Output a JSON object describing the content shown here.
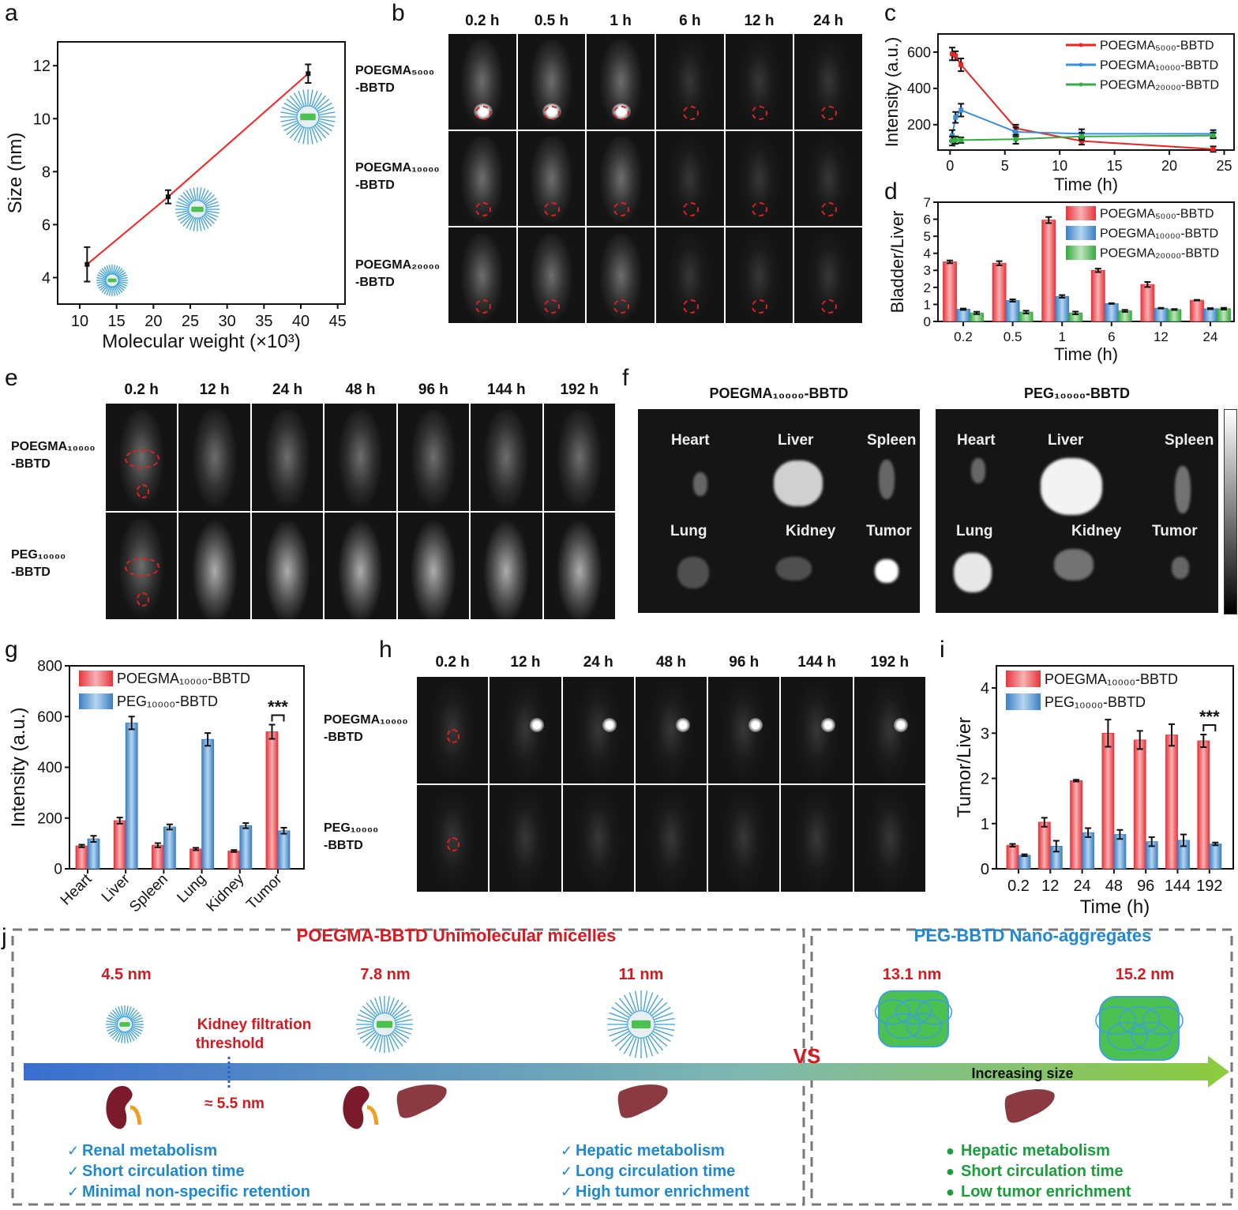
{
  "panel_labels": {
    "a": "a",
    "b": "b",
    "c": "c",
    "d": "d",
    "e": "e",
    "f": "f",
    "g": "g",
    "h": "h",
    "i": "i",
    "j": "j"
  },
  "chart_data": [
    {
      "panel": "a",
      "type": "line",
      "title": "",
      "xlabel": "Molecular weight (×10³)",
      "ylabel": "Size (nm)",
      "xlim": [
        7,
        46
      ],
      "ylim": [
        3,
        12.9
      ],
      "xticks": [
        10,
        15,
        20,
        25,
        30,
        35,
        40,
        45
      ],
      "yticks": [
        4,
        6,
        8,
        10,
        12
      ],
      "grid": false,
      "series": [
        {
          "x": [
            11,
            22,
            41
          ],
          "y": [
            4.5,
            7.05,
            11.7
          ],
          "err": [
            0.65,
            0.25,
            0.35
          ],
          "color": "#ff2020"
        }
      ]
    },
    {
      "panel": "c",
      "type": "line",
      "title": "",
      "xlabel": "Time (h)",
      "ylabel": "Intensity (a.u.)",
      "xlim": [
        -1.1,
        25.9
      ],
      "ylim": [
        60,
        700
      ],
      "xticks": [
        0,
        5,
        10,
        15,
        20,
        25
      ],
      "yticks": [
        200,
        400,
        600
      ],
      "grid": false,
      "legend": "top-right",
      "series": [
        {
          "name": "POEGMA₅₀₀₀-BBTD",
          "x": [
            0.2,
            0.5,
            1,
            6,
            12,
            24
          ],
          "y": [
            590,
            580,
            530,
            180,
            110,
            65
          ],
          "err": [
            35,
            25,
            35,
            20,
            20,
            15
          ],
          "color": "#ee2222"
        },
        {
          "name": "POEGMA₁₀₀₀₀-BBTD",
          "x": [
            0.2,
            0.5,
            1,
            6,
            12,
            24
          ],
          "y": [
            140,
            240,
            280,
            160,
            150,
            150
          ],
          "err": [
            30,
            30,
            35,
            25,
            25,
            20
          ],
          "color": "#3a8fd8"
        },
        {
          "name": "POEGMA₂₀₀₀₀-BBTD",
          "x": [
            0.2,
            0.5,
            1,
            6,
            12,
            24
          ],
          "y": [
            110,
            115,
            115,
            120,
            135,
            140
          ],
          "err": [
            25,
            20,
            15,
            25,
            20,
            15
          ],
          "color": "#33b040"
        }
      ]
    },
    {
      "panel": "d",
      "type": "bar",
      "title": "",
      "xlabel": "Time (h)",
      "ylabel": "Bladder/Liver",
      "categories": [
        "0.2",
        "0.5",
        "1",
        "6",
        "12",
        "24"
      ],
      "ylim": [
        0,
        7
      ],
      "yticks": [
        0,
        1,
        2,
        3,
        4,
        5,
        6,
        7
      ],
      "legend": "top-right",
      "series": [
        {
          "name": "POEGMA₅₀₀₀-BBTD",
          "values": [
            3.5,
            3.42,
            5.95,
            3.0,
            2.17,
            1.25
          ],
          "errors": [
            0.08,
            0.12,
            0.18,
            0.1,
            0.15,
            0.02
          ],
          "color": "red"
        },
        {
          "name": "POEGMA₁₀₀₀₀-BBTD",
          "values": [
            0.72,
            1.23,
            1.47,
            1.05,
            0.78,
            0.75
          ],
          "errors": [
            0.04,
            0.07,
            0.08,
            0.02,
            0.02,
            0.03
          ],
          "color": "blue"
        },
        {
          "name": "POEGMA₂₀₀₀₀-BBTD",
          "values": [
            0.5,
            0.55,
            0.5,
            0.62,
            0.7,
            0.75
          ],
          "errors": [
            0.07,
            0.08,
            0.08,
            0.06,
            0.03,
            0.05
          ],
          "color": "green"
        }
      ]
    },
    {
      "panel": "g",
      "type": "bar",
      "title": "",
      "xlabel": "",
      "ylabel": "Intensity (a.u.)",
      "categories": [
        "Heart",
        "Liver",
        "Spleen",
        "Lung",
        "Kidney",
        "Tumor"
      ],
      "ylim": [
        0,
        800
      ],
      "yticks": [
        0,
        200,
        400,
        600,
        800
      ],
      "legend": "top-left",
      "annotation": {
        "text": "***",
        "category": "Tumor"
      },
      "series": [
        {
          "name": "POEGMA₁₀₀₀₀-BBTD",
          "values": [
            90,
            190,
            93,
            78,
            70,
            540
          ],
          "errors": [
            5,
            12,
            8,
            5,
            4,
            28
          ],
          "color": "red"
        },
        {
          "name": "PEG₁₀₀₀₀-BBTD",
          "values": [
            118,
            575,
            165,
            510,
            170,
            150
          ],
          "errors": [
            12,
            25,
            10,
            25,
            10,
            12
          ],
          "color": "blue"
        }
      ]
    },
    {
      "panel": "i",
      "type": "bar",
      "title": "",
      "xlabel": "Time (h)",
      "ylabel": "Tumor/Liver",
      "categories": [
        "0.2",
        "12",
        "24",
        "48",
        "96",
        "144",
        "192"
      ],
      "ylim": [
        0,
        4.49
      ],
      "yticks": [
        0,
        1,
        2,
        3,
        4
      ],
      "legend": "top-left",
      "annotation": {
        "text": "***",
        "category": "192"
      },
      "series": [
        {
          "name": "POEGMA₁₀₀₀₀-BBTD",
          "values": [
            0.52,
            1.03,
            1.95,
            3.0,
            2.85,
            2.96,
            2.83
          ],
          "errors": [
            0.03,
            0.1,
            0.02,
            0.3,
            0.2,
            0.24,
            0.14
          ],
          "color": "red"
        },
        {
          "name": "PEG₁₀₀₀₀-BBTD",
          "values": [
            0.3,
            0.5,
            0.8,
            0.76,
            0.6,
            0.63,
            0.55
          ],
          "errors": [
            0.02,
            0.12,
            0.1,
            0.1,
            0.1,
            0.13,
            0.03
          ],
          "color": "blue"
        }
      ]
    }
  ],
  "panel_b": {
    "columns": [
      "0.2 h",
      "0.5 h",
      "1 h",
      "6 h",
      "12 h",
      "24 h"
    ],
    "rows": [
      {
        "line1": "POEGMA₅₀₀₀",
        "line2": "-BBTD"
      },
      {
        "line1": "POEGMA₁₀₀₀₀",
        "line2": "-BBTD"
      },
      {
        "line1": "POEGMA₂₀₀₀₀",
        "line2": "-BBTD"
      }
    ]
  },
  "panel_e": {
    "columns": [
      "0.2 h",
      "12 h",
      "24 h",
      "48 h",
      "96 h",
      "144 h",
      "192 h"
    ],
    "rows": [
      {
        "line1": "POEGMA₁₀₀₀₀",
        "line2": "-BBTD"
      },
      {
        "line1": "PEG₁₀₀₀₀",
        "line2": "-BBTD"
      }
    ]
  },
  "panel_f": {
    "groups": [
      {
        "title": "POEGMA₁₀₀₀₀-BBTD",
        "organs": [
          "Heart",
          "Liver",
          "Spleen",
          "Lung",
          "Kidney",
          "Tumor"
        ]
      },
      {
        "title": "PEG₁₀₀₀₀-BBTD",
        "organs": [
          "Heart",
          "Liver",
          "Spleen",
          "Lung",
          "Kidney",
          "Tumor"
        ]
      }
    ]
  },
  "panel_h": {
    "columns": [
      "0.2 h",
      "12 h",
      "24 h",
      "48 h",
      "96 h",
      "144 h",
      "192 h"
    ],
    "rows": [
      {
        "line1": "POEGMA₁₀₀₀₀",
        "line2": "-BBTD"
      },
      {
        "line1": "PEG₁₀₀₀₀",
        "line2": "-BBTD"
      }
    ]
  },
  "panel_j": {
    "left_title": "POEGMA-BBTD Unimolecular micelles",
    "right_title": "PEG-BBTD Nano-aggregates",
    "sizes": [
      "4.5 nm",
      "7.8 nm",
      "11 nm",
      "13.1 nm",
      "15.2 nm"
    ],
    "threshold_line1": "Kidney filtration",
    "threshold_line2": "threshold",
    "threshold_value": "≈ 5.5 nm",
    "vs": "VS",
    "arrow_label": "Increasing size",
    "list_left": [
      "Renal metabolism",
      "Short circulation time",
      "Minimal non-specific retention"
    ],
    "list_middle": [
      "Hepatic metabolism",
      "Long circulation time",
      "High tumor enrichment"
    ],
    "list_right": [
      "Hepatic metabolism",
      "Short circulation time",
      "Low tumor enrichment"
    ],
    "check": "✓",
    "bullet": "●",
    "colors": {
      "red": "#d8181e",
      "blue": "#1e88d0",
      "green": "#1a9e3a"
    }
  }
}
